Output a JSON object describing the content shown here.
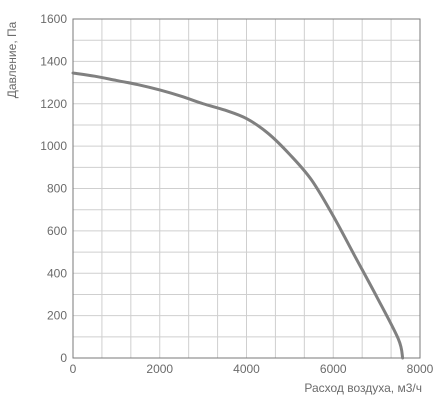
{
  "chart_data": {
    "type": "line",
    "title": "",
    "xlabel": "Расход воздуха, м3/ч",
    "ylabel": "Давление, Па",
    "xlim": [
      0,
      8000
    ],
    "ylim": [
      0,
      1600
    ],
    "x_ticks": [
      0,
      2000,
      4000,
      6000,
      8000
    ],
    "y_ticks": [
      0,
      200,
      400,
      600,
      800,
      1000,
      1200,
      1400,
      1600
    ],
    "x_tick_labels": [
      "0",
      "2000",
      "4000",
      "6000",
      "8000"
    ],
    "y_tick_labels": [
      "0",
      "200",
      "400",
      "600",
      "800",
      "1000",
      "1200",
      "1400",
      "1600"
    ],
    "x_minor_step": 667,
    "y_minor_step": 100,
    "grid": true,
    "series": [
      {
        "color": "#808080",
        "x": [
          0,
          500,
          1000,
          1500,
          2000,
          2500,
          3000,
          3500,
          4000,
          4500,
          5000,
          5500,
          6000,
          6500,
          7000,
          7500,
          7600
        ],
        "y": [
          1345,
          1330,
          1310,
          1290,
          1265,
          1235,
          1200,
          1170,
          1130,
          1060,
          960,
          840,
          670,
          480,
          290,
          90,
          0
        ]
      }
    ]
  }
}
